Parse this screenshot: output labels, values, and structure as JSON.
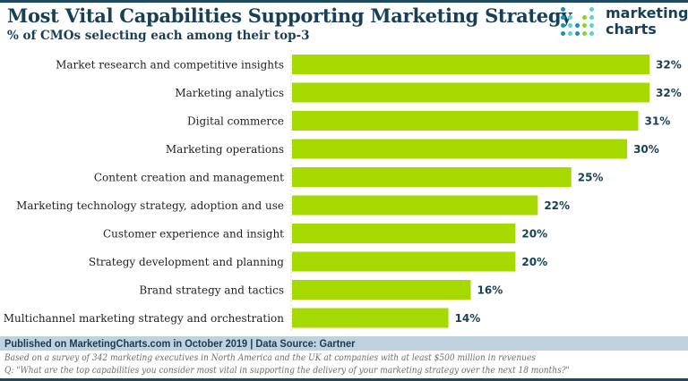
{
  "header": {
    "title": "Most Vital Capabilities Supporting Marketing Strategy",
    "subtitle": "% of CMOs selecting each among their top-3"
  },
  "logo": {
    "line1": "marketing",
    "line2": "charts",
    "colors": [
      "#1a8fb5",
      "#5fd0d4",
      "#8dd42a"
    ]
  },
  "colors": {
    "bar": "#a6d900",
    "value_label": "#173f56",
    "category_label": "#222222",
    "frame": "#1d4a5e"
  },
  "chart_data": {
    "type": "bar",
    "orientation": "horizontal",
    "title": "Most Vital Capabilities Supporting Marketing Strategy",
    "subtitle": "% of CMOs selecting each among their top-3",
    "xlabel": "",
    "ylabel": "",
    "unit": "%",
    "xlim": [
      0,
      32
    ],
    "grid": false,
    "categories": [
      "Market research and competitive insights",
      "Marketing analytics",
      "Digital commerce",
      "Marketing operations",
      "Content creation and management",
      "Marketing technology strategy, adoption and use",
      "Customer experience and insight",
      "Strategy development and planning",
      "Brand strategy and tactics",
      "Multichannel marketing strategy and orchestration"
    ],
    "values": [
      32,
      32,
      31,
      30,
      25,
      22,
      20,
      20,
      16,
      14
    ],
    "labels": [
      "32%",
      "32%",
      "31%",
      "30%",
      "25%",
      "22%",
      "20%",
      "20%",
      "16%",
      "14%"
    ]
  },
  "footer": {
    "published": "Published on MarketingCharts.com in October 2019 | Data Source: Gartner",
    "note1": "Based on a survey of 342 marketing executives in North America and the UK at companies with at least $500 million in revenues",
    "note2": "Q: \"What are the top capabilities you consider most vital in supporting the delivery of your marketing strategy over the next 18 months?\""
  }
}
